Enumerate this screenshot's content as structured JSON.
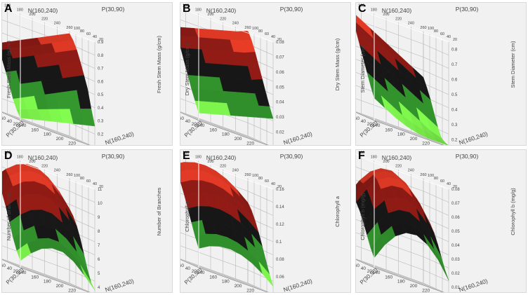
{
  "chart_data": [
    {
      "type": "surface",
      "panel": "A",
      "zlabel": "Fresh Stem Mass (g/cm)",
      "xlabel": "N(160,240)",
      "ylabel": "P(30,90)",
      "x_ticks": [
        "140",
        "160",
        "180",
        "200",
        "220",
        "240",
        "260"
      ],
      "y_ticks": [
        "20",
        "40",
        "60",
        "80",
        "100"
      ],
      "top_x_ticks": [
        "140",
        "160",
        "180",
        "200",
        "220",
        "240",
        "260"
      ],
      "top_y_ticks": [
        "100",
        "80",
        "60",
        "40",
        "20"
      ],
      "z_ticks": [
        "0.1",
        "0.2",
        "0.3",
        "0.4",
        "0.5",
        "0.6",
        "0.7",
        "0.8",
        "0.9"
      ],
      "zlim": [
        0.1,
        0.9
      ],
      "grid": [
        [
          0.6,
          0.64,
          0.68,
          0.72,
          0.76,
          0.8,
          0.84,
          0.88
        ],
        [
          0.56,
          0.6,
          0.64,
          0.68,
          0.72,
          0.76,
          0.8,
          0.84
        ],
        [
          0.5,
          0.54,
          0.58,
          0.62,
          0.66,
          0.7,
          0.74,
          0.78
        ],
        [
          0.42,
          0.46,
          0.5,
          0.54,
          0.58,
          0.62,
          0.66,
          0.7
        ],
        [
          0.33,
          0.37,
          0.41,
          0.45,
          0.49,
          0.53,
          0.57,
          0.61
        ],
        [
          0.24,
          0.28,
          0.32,
          0.36,
          0.4,
          0.44,
          0.48,
          0.52
        ],
        [
          0.17,
          0.2,
          0.23,
          0.26,
          0.29,
          0.32,
          0.35,
          0.38
        ],
        [
          0.12,
          0.14,
          0.16,
          0.18,
          0.2,
          0.22,
          0.24,
          0.26
        ]
      ]
    },
    {
      "type": "surface",
      "panel": "B",
      "zlabel": "Dry Stem Mass (g/cm)",
      "xlabel": "N(160,240)",
      "ylabel": "P(30,90)",
      "x_ticks": [
        "140",
        "160",
        "180",
        "200",
        "220",
        "240",
        "260"
      ],
      "y_ticks": [
        "20",
        "40",
        "60",
        "80",
        "100"
      ],
      "top_x_ticks": [
        "140",
        "160",
        "180",
        "200",
        "220",
        "240",
        "260"
      ],
      "top_y_ticks": [
        "100",
        "80",
        "60",
        "40",
        "20"
      ],
      "z_ticks": [
        "0.01",
        "0.02",
        "0.03",
        "0.04",
        "0.05",
        "0.06",
        "0.07",
        "0.08"
      ],
      "zlim": [
        0.01,
        0.08
      ],
      "grid": [
        [
          0.065,
          0.067,
          0.069,
          0.071,
          0.073,
          0.075,
          0.077,
          0.08
        ],
        [
          0.06,
          0.062,
          0.064,
          0.066,
          0.068,
          0.07,
          0.072,
          0.075
        ],
        [
          0.053,
          0.055,
          0.057,
          0.059,
          0.061,
          0.063,
          0.065,
          0.068
        ],
        [
          0.045,
          0.047,
          0.049,
          0.051,
          0.053,
          0.055,
          0.057,
          0.06
        ],
        [
          0.037,
          0.039,
          0.041,
          0.043,
          0.045,
          0.047,
          0.049,
          0.052
        ],
        [
          0.029,
          0.031,
          0.033,
          0.035,
          0.037,
          0.039,
          0.041,
          0.044
        ],
        [
          0.022,
          0.024,
          0.026,
          0.028,
          0.03,
          0.032,
          0.034,
          0.036
        ],
        [
          0.015,
          0.017,
          0.019,
          0.021,
          0.023,
          0.025,
          0.027,
          0.029
        ]
      ]
    },
    {
      "type": "surface",
      "panel": "C",
      "zlabel": "Stem Diameter (cm)",
      "xlabel": "N(160,240)",
      "ylabel": "P(30,90)",
      "x_ticks": [
        "140",
        "160",
        "180",
        "200",
        "220",
        "240",
        "260"
      ],
      "y_ticks": [
        "20",
        "40",
        "60",
        "80",
        "100"
      ],
      "top_x_ticks": [
        "140",
        "160",
        "180",
        "200",
        "220",
        "240",
        "260"
      ],
      "top_y_ticks": [
        "100",
        "80",
        "60",
        "40",
        "20"
      ],
      "z_ticks": [
        "0.2",
        "0.3",
        "0.4",
        "0.5",
        "0.6",
        "0.7",
        "0.8"
      ],
      "zlim": [
        0.15,
        0.85
      ],
      "grid": [
        [
          0.82,
          0.78,
          0.74,
          0.7,
          0.66,
          0.62,
          0.58,
          0.54
        ],
        [
          0.76,
          0.72,
          0.68,
          0.64,
          0.6,
          0.56,
          0.52,
          0.48
        ],
        [
          0.69,
          0.65,
          0.61,
          0.57,
          0.53,
          0.49,
          0.45,
          0.41
        ],
        [
          0.61,
          0.57,
          0.53,
          0.49,
          0.45,
          0.41,
          0.37,
          0.33
        ],
        [
          0.53,
          0.49,
          0.45,
          0.41,
          0.37,
          0.33,
          0.29,
          0.25
        ],
        [
          0.45,
          0.41,
          0.37,
          0.33,
          0.29,
          0.25,
          0.21,
          0.19
        ],
        [
          0.37,
          0.33,
          0.29,
          0.25,
          0.22,
          0.2,
          0.18,
          0.17
        ],
        [
          0.3,
          0.26,
          0.22,
          0.19,
          0.17,
          0.16,
          0.16,
          0.16
        ]
      ]
    },
    {
      "type": "surface",
      "panel": "D",
      "zlabel": "Number of Branches",
      "xlabel": "N(160,240)",
      "ylabel": "P(30,90)",
      "x_ticks": [
        "140",
        "160",
        "180",
        "200",
        "220",
        "240",
        "260"
      ],
      "y_ticks": [
        "20",
        "40",
        "60",
        "80",
        "100"
      ],
      "top_x_ticks": [
        "140",
        "160",
        "180",
        "200",
        "220",
        "240",
        "260"
      ],
      "top_y_ticks": [
        "100",
        "80",
        "60",
        "40",
        "20"
      ],
      "z_ticks": [
        "4",
        "5",
        "6",
        "7",
        "8",
        "9",
        "10",
        "11"
      ],
      "zlim": [
        3.5,
        11
      ],
      "grid": [
        [
          9.2,
          10.0,
          10.6,
          10.9,
          10.9,
          10.5,
          9.8,
          8.8
        ],
        [
          8.8,
          9.6,
          10.2,
          10.5,
          10.5,
          10.1,
          9.4,
          8.4
        ],
        [
          8.2,
          9.0,
          9.6,
          9.9,
          9.9,
          9.5,
          8.8,
          7.8
        ],
        [
          7.4,
          8.2,
          8.8,
          9.1,
          9.1,
          8.7,
          8.0,
          7.0
        ],
        [
          6.4,
          7.2,
          7.8,
          8.1,
          8.1,
          7.7,
          7.0,
          6.0
        ],
        [
          5.4,
          6.2,
          6.8,
          7.1,
          7.1,
          6.7,
          6.0,
          5.0
        ],
        [
          4.6,
          5.4,
          6.0,
          6.3,
          6.3,
          5.9,
          5.2,
          4.2
        ],
        [
          4.0,
          4.8,
          5.4,
          5.7,
          5.7,
          5.3,
          4.6,
          3.8
        ]
      ]
    },
    {
      "type": "surface",
      "panel": "E",
      "zlabel": "Chlorophyll a",
      "xlabel": "N(160,240)",
      "ylabel": "P(30,90)",
      "x_ticks": [
        "140",
        "160",
        "180",
        "200",
        "220",
        "240",
        "260"
      ],
      "y_ticks": [
        "20",
        "40",
        "60",
        "80",
        "100"
      ],
      "top_x_ticks": [
        "140",
        "160",
        "180",
        "200",
        "220",
        "240",
        "260"
      ],
      "top_y_ticks": [
        "100",
        "80",
        "60",
        "40",
        "20"
      ],
      "z_ticks": [
        "0.04",
        "0.06",
        "0.08",
        "0.1",
        "0.12",
        "0.14",
        "0.16"
      ],
      "zlim": [
        0.04,
        0.16
      ],
      "grid": [
        [
          0.145,
          0.152,
          0.156,
          0.157,
          0.155,
          0.15,
          0.142,
          0.132
        ],
        [
          0.138,
          0.145,
          0.149,
          0.15,
          0.148,
          0.143,
          0.135,
          0.125
        ],
        [
          0.128,
          0.135,
          0.139,
          0.14,
          0.138,
          0.133,
          0.125,
          0.115
        ],
        [
          0.116,
          0.123,
          0.127,
          0.128,
          0.126,
          0.121,
          0.113,
          0.103
        ],
        [
          0.102,
          0.109,
          0.113,
          0.114,
          0.112,
          0.107,
          0.099,
          0.089
        ],
        [
          0.088,
          0.095,
          0.099,
          0.1,
          0.098,
          0.093,
          0.085,
          0.075
        ],
        [
          0.074,
          0.081,
          0.085,
          0.086,
          0.084,
          0.079,
          0.071,
          0.061
        ],
        [
          0.062,
          0.069,
          0.073,
          0.074,
          0.072,
          0.067,
          0.059,
          0.049
        ]
      ]
    },
    {
      "type": "surface",
      "panel": "F",
      "zlabel": "Chlorophyll b (mg/g)",
      "xlabel": "N(160,240)",
      "ylabel": "P(30,90)",
      "x_ticks": [
        "140",
        "160",
        "180",
        "200",
        "220",
        "240",
        "260"
      ],
      "y_ticks": [
        "20",
        "40",
        "60",
        "80",
        "100"
      ],
      "top_x_ticks": [
        "140",
        "160",
        "180",
        "200",
        "220",
        "240",
        "260"
      ],
      "top_y_ticks": [
        "100",
        "80",
        "60",
        "40",
        "20"
      ],
      "z_ticks": [
        "0.01",
        "0.02",
        "0.03",
        "0.04",
        "0.05",
        "0.06",
        "0.07",
        "0.08"
      ],
      "zlim": [
        0.005,
        0.08
      ],
      "grid": [
        [
          0.05,
          0.062,
          0.071,
          0.076,
          0.077,
          0.073,
          0.065,
          0.053
        ],
        [
          0.049,
          0.061,
          0.07,
          0.075,
          0.076,
          0.072,
          0.064,
          0.052
        ],
        [
          0.046,
          0.058,
          0.067,
          0.072,
          0.073,
          0.069,
          0.061,
          0.049
        ],
        [
          0.041,
          0.053,
          0.062,
          0.067,
          0.068,
          0.064,
          0.056,
          0.044
        ],
        [
          0.034,
          0.046,
          0.055,
          0.06,
          0.061,
          0.057,
          0.049,
          0.037
        ],
        [
          0.026,
          0.038,
          0.047,
          0.052,
          0.053,
          0.049,
          0.041,
          0.029
        ],
        [
          0.018,
          0.03,
          0.039,
          0.044,
          0.045,
          0.041,
          0.033,
          0.021
        ],
        [
          0.012,
          0.024,
          0.033,
          0.038,
          0.039,
          0.035,
          0.027,
          0.015
        ]
      ]
    }
  ],
  "colors": {
    "band_1": "#7aee4a",
    "band_2": "#2f8a2a",
    "band_3": "#161616",
    "band_4": "#8a1a14",
    "band_5": "#e23a26",
    "panel_bg": "#f1f1f1",
    "grid_line": "#b8b8b8"
  }
}
